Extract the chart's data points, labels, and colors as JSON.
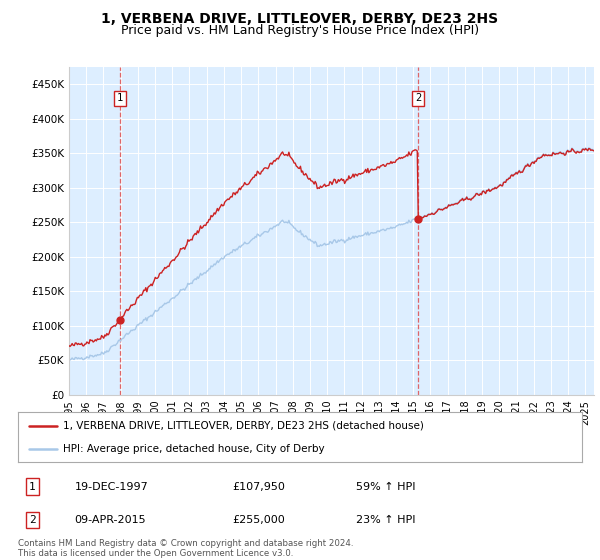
{
  "title": "1, VERBENA DRIVE, LITTLEOVER, DERBY, DE23 2HS",
  "subtitle": "Price paid vs. HM Land Registry's House Price Index (HPI)",
  "ylabel_ticks": [
    "£0",
    "£50K",
    "£100K",
    "£150K",
    "£200K",
    "£250K",
    "£300K",
    "£350K",
    "£400K",
    "£450K"
  ],
  "ylim": [
    0,
    475000
  ],
  "xlim_start": 1995.0,
  "xlim_end": 2025.5,
  "sale1_date": 1997.97,
  "sale1_price": 107950,
  "sale1_label": "1",
  "sale2_date": 2015.27,
  "sale2_price": 255000,
  "sale2_label": "2",
  "hpi_color": "#a8c8e8",
  "price_color": "#cc2222",
  "dashed_color": "#dd4444",
  "bg_color": "#ddeeff",
  "legend_entry1": "1, VERBENA DRIVE, LITTLEOVER, DERBY, DE23 2HS (detached house)",
  "legend_entry2": "HPI: Average price, detached house, City of Derby",
  "table_row1": [
    "1",
    "19-DEC-1997",
    "£107,950",
    "59% ↑ HPI"
  ],
  "table_row2": [
    "2",
    "09-APR-2015",
    "£255,000",
    "23% ↑ HPI"
  ],
  "footnote": "Contains HM Land Registry data © Crown copyright and database right 2024.\nThis data is licensed under the Open Government Licence v3.0.",
  "title_fontsize": 10,
  "subtitle_fontsize": 9
}
